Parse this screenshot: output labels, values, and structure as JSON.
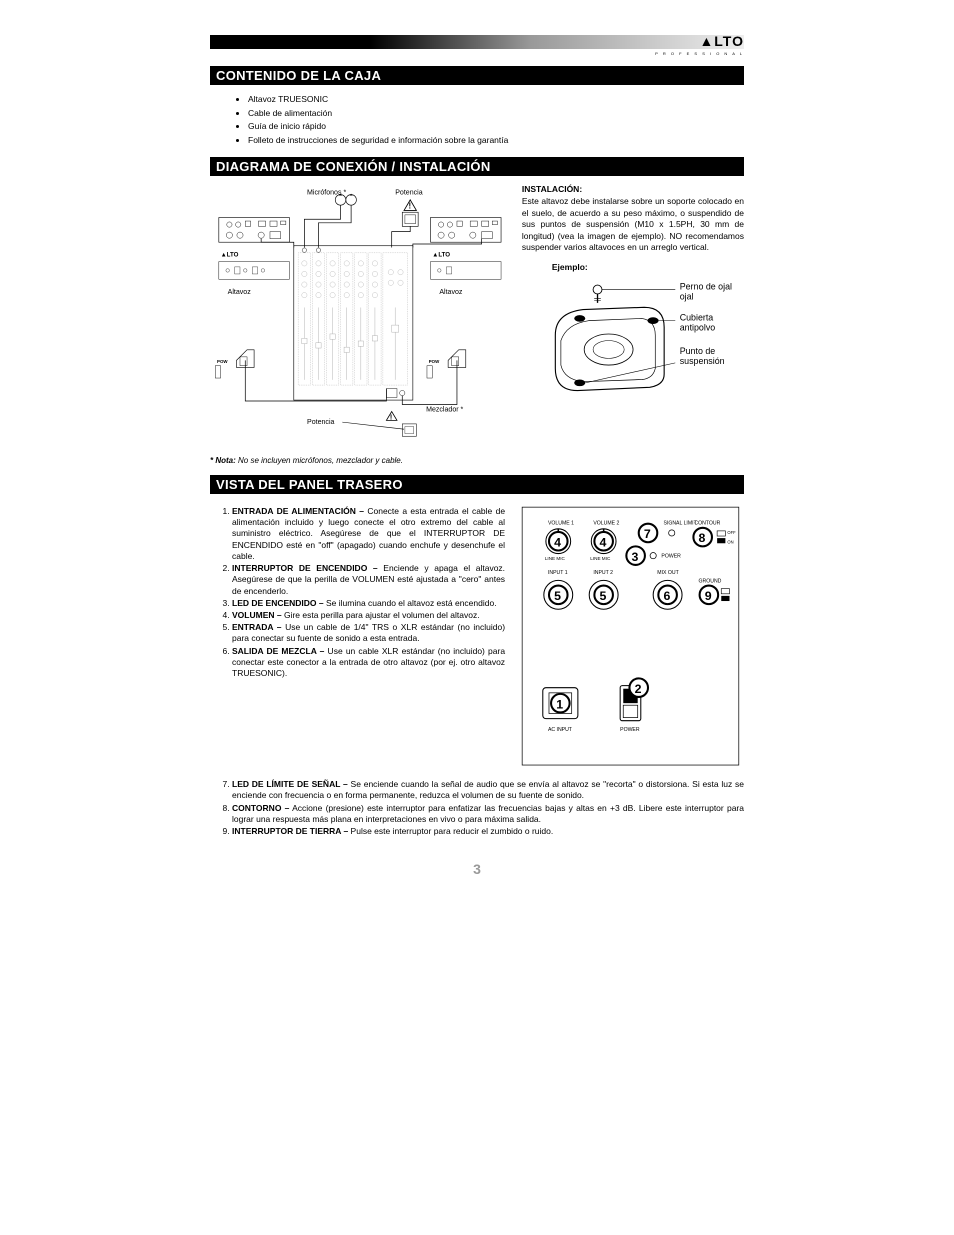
{
  "brand": "▲LTO",
  "brand_sub": "P R O F E S S I O N A L",
  "page_number": "3",
  "sections": {
    "box": {
      "title": "CONTENIDO DE LA CAJA",
      "items": [
        "Altavoz TRUESONIC",
        "Cable de alimentación",
        "Guía de inicio rápido",
        "Folleto de instrucciones de seguridad e información sobre la garantía"
      ]
    },
    "diagram": {
      "title": "DIAGRAMA DE CONEXIÓN / INSTALACIÓN",
      "labels": {
        "microfonos": "Micrófonos *",
        "potencia": "Potencia",
        "altavoz": "Altavoz",
        "mezclador": "Mezclador *"
      },
      "note": "* Nota: No se incluyen micrófonos, mezclador y cable.",
      "install_heading": "INSTALACIÓN:",
      "install_text": "Este altavoz debe instalarse sobre un soporte colocado en el suelo, de acuerdo a su peso máximo, o suspendido de sus puntos de suspensión (M10 x 1.5PH, 30 mm de longitud) (vea la imagen de ejemplo). NO recomendamos suspender varios altavoces en un arreglo vertical.",
      "ejemplo": "Ejemplo:",
      "ejemplo_labels": {
        "perno": "Perno de ojal",
        "cubierta": "Cubierta antipolvo",
        "punto": "Punto de suspensión"
      }
    },
    "rear": {
      "title": "VISTA DEL PANEL TRASERO",
      "items": [
        {
          "term": "ENTRADA DE ALIMENTACIÓN –",
          "text": " Conecte a esta entrada el cable de alimentación incluido y luego conecte el otro extremo del cable al suministro eléctrico.  Asegúrese de que el INTERRUPTOR DE ENCENDIDO esté en \"off\" (apagado) cuando enchufe y desenchufe el cable."
        },
        {
          "term": "INTERRUPTOR DE ENCENDIDO –",
          "text": " Enciende y apaga el altavoz.  Asegúrese de que la perilla de VOLUMEN esté ajustada a \"cero\" antes de encenderlo."
        },
        {
          "term": "LED DE ENCENDIDO –",
          "text": " Se ilumina cuando el altavoz está encendido."
        },
        {
          "term": "VOLUMEN –",
          "text": " Gire esta perilla para ajustar el volumen del altavoz."
        },
        {
          "term": "ENTRADA –",
          "text": " Use un cable de 1/4\" TRS o XLR estándar (no incluido) para conectar su fuente de sonido a esta entrada."
        },
        {
          "term": "SALIDA DE MEZCLA –",
          "text": " Use un cable XLR estándar (no incluido) para conectar este conector a la entrada de otro altavoz (por ej. otro altavoz TRUESONIC)."
        },
        {
          "term": "LED DE LÍMITE DE SEÑAL –",
          "text": " Se enciende cuando la señal de audio que se envía al altavoz se \"recorta\" o distorsiona.  Si esta luz se enciende con frecuencia o en forma permanente, reduzca el volumen de su fuente de sonido."
        },
        {
          "term": "CONTORNO –",
          "text": " Accione (presione) este interruptor para enfatizar las frecuencias bajas y altas en +3 dB.  Libere este interruptor para lograr una respuesta más plana en interpretaciones en vivo o para máxima salida."
        },
        {
          "term": "INTERRUPTOR DE TIERRA –",
          "text": " Pulse este interruptor para reducir el zumbido o ruido."
        }
      ],
      "panel_labels": {
        "volume1": "VOLUME 1",
        "volume2": "VOLUME 2",
        "linemic": "LINE    MIC",
        "input1": "INPUT 1",
        "input2": "INPUT 2",
        "signal": "SIGNAL LIMIT",
        "contour": "CONTOUR",
        "off": "OFF",
        "on": "ON",
        "power": "POWER",
        "mixout": "MIX OUT",
        "ground": "GROUND",
        "acinput": "AC INPUT"
      }
    }
  }
}
